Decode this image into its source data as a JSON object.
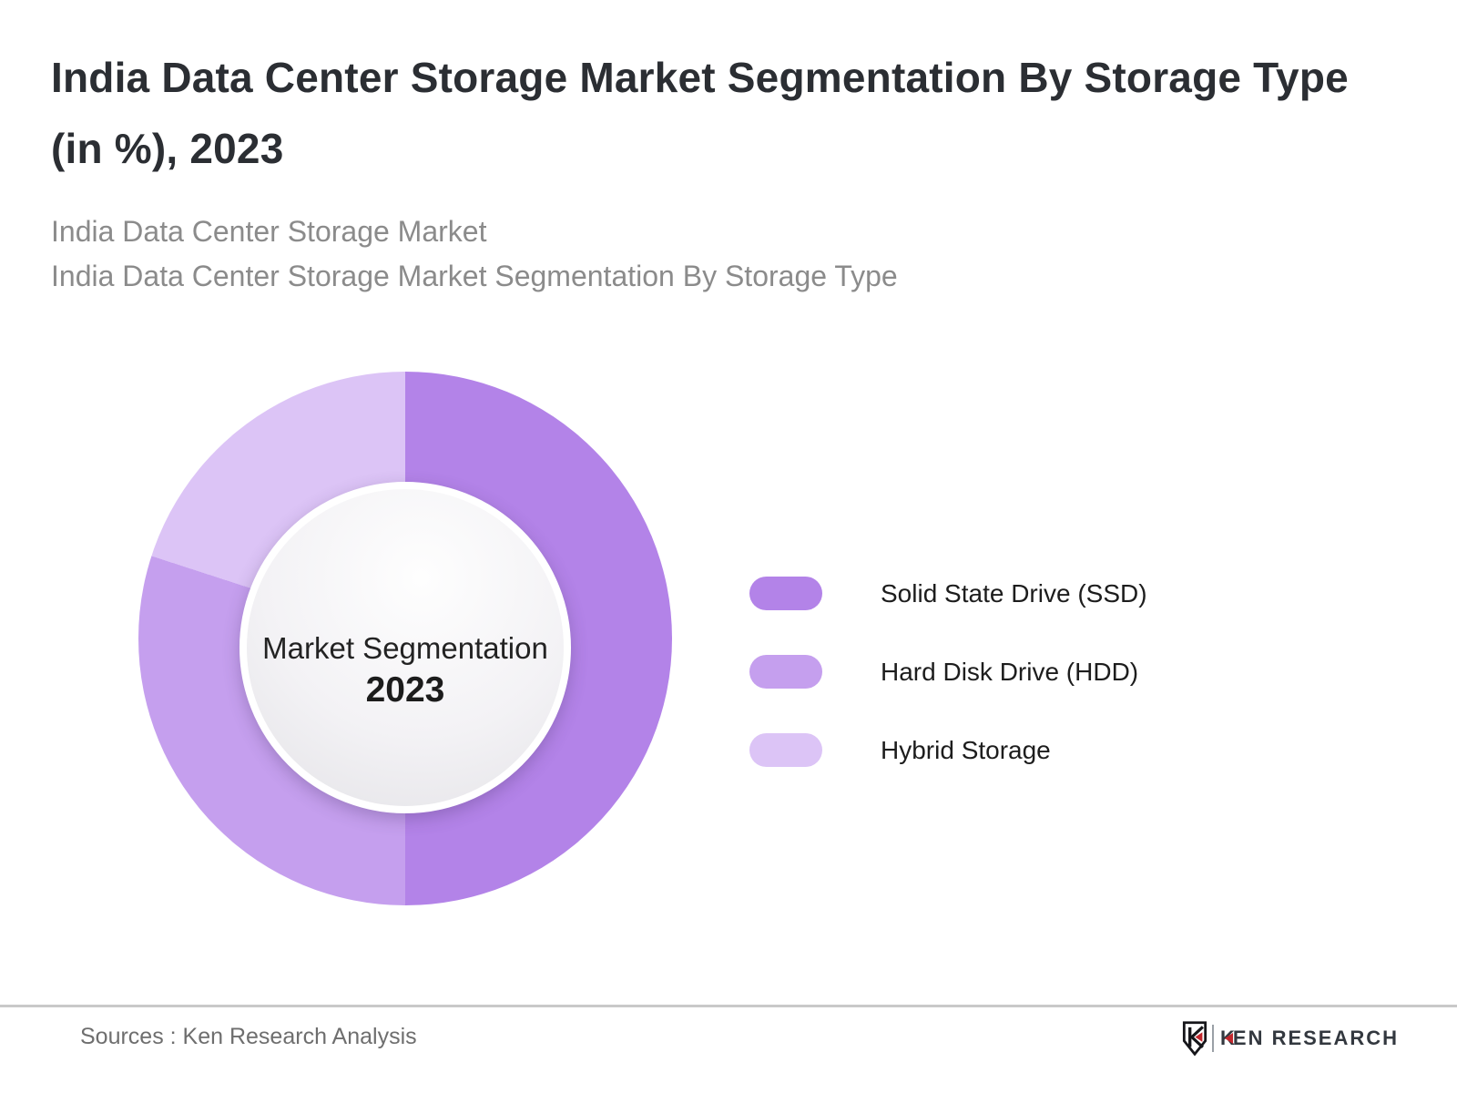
{
  "header": {
    "title": "India Data Center Storage Market Segmentation By Storage Type (in %), 2023",
    "subtitle_line1": "India Data Center Storage Market",
    "subtitle_line2": "India Data Center Storage Market Segmentation By Storage Type"
  },
  "chart_data": {
    "type": "pie",
    "variant": "donut",
    "title": "India Data Center Storage Market Segmentation By Storage Type (in %), 2023",
    "unit": "%",
    "start_angle_deg": 0,
    "direction": "clockwise",
    "legend_position": "right",
    "center_label": "Market Segmentation",
    "center_year": "2023",
    "segments": [
      {
        "label": "Solid State Drive (SSD)",
        "value": 50,
        "color": "#b383e8"
      },
      {
        "label": "Hard Disk Drive (HDD)",
        "value": 30,
        "color": "#c59fee"
      },
      {
        "label": "Hybrid Storage",
        "value": 20,
        "color": "#dcc4f6"
      }
    ]
  },
  "footer": {
    "sources": "Sources : Ken Research Analysis",
    "brand_k": "K",
    "brand_rest": "EN RESEARCH"
  },
  "colors": {
    "title_text": "#2b2e33",
    "subtitle_text": "#8b8b8b",
    "legend_text": "#1d1d1d",
    "divider": "#c9c9c9",
    "sources_text": "#6e6e6e",
    "brand_red": "#c2262c",
    "brand_dark": "#33383f",
    "donut_hole_edge": "#e3e2e6"
  }
}
